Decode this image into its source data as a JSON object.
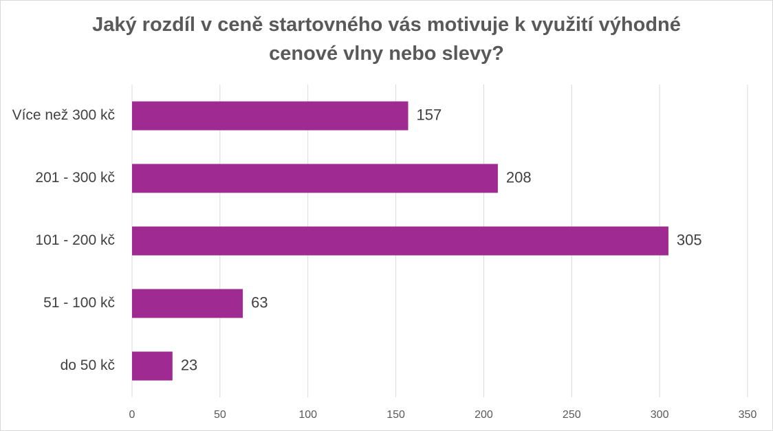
{
  "chart_data": {
    "type": "bar",
    "orientation": "horizontal",
    "title_lines": [
      "Jaký rozdíl v ceně startovného vás motivuje k využití výhodné",
      "cenové vlny nebo slevy?"
    ],
    "categories": [
      "Více než 300 kč",
      "201 - 300 kč",
      "101 - 200 kč",
      "51 - 100 kč",
      "do 50 kč"
    ],
    "values": [
      157,
      208,
      305,
      63,
      23
    ],
    "xlim": [
      0,
      350
    ],
    "x_ticks": [
      "0",
      "50",
      "100",
      "150",
      "200",
      "250",
      "300",
      "350"
    ],
    "grid": true,
    "data_labels": true,
    "bar_color": "#9e2a92",
    "xlabel": "",
    "ylabel": ""
  }
}
